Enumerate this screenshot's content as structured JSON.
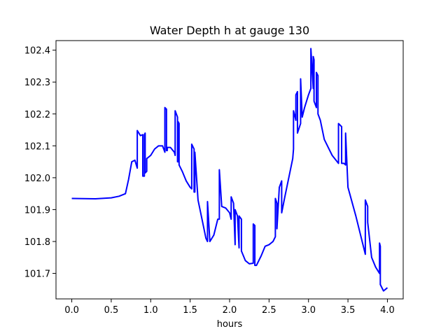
{
  "chart_data": {
    "type": "line",
    "title": "Water Depth h at gauge 130",
    "xlabel": "hours",
    "ylabel": "",
    "xlim": [
      -0.2,
      4.2
    ],
    "ylim": [
      101.62,
      102.43
    ],
    "x_ticks": [
      0.0,
      0.5,
      1.0,
      1.5,
      2.0,
      2.5,
      3.0,
      3.5,
      4.0
    ],
    "x_tick_labels": [
      "0.0",
      "0.5",
      "1.0",
      "1.5",
      "2.0",
      "2.5",
      "3.0",
      "3.5",
      "4.0"
    ],
    "y_ticks": [
      101.7,
      101.8,
      101.9,
      102.0,
      102.1,
      102.2,
      102.3,
      102.4
    ],
    "y_tick_labels": [
      "101.7",
      "101.8",
      "101.9",
      "102.0",
      "102.1",
      "102.2",
      "102.3",
      "102.4"
    ],
    "grid": false,
    "series": [
      {
        "color": "#0000ff",
        "x": [
          0.0,
          0.3,
          0.5,
          0.6,
          0.68,
          0.72,
          0.76,
          0.8,
          0.83,
          0.83,
          0.87,
          0.9,
          0.9,
          0.92,
          0.92,
          0.93,
          0.93,
          0.95,
          0.95,
          1.0,
          1.05,
          1.1,
          1.15,
          1.18,
          1.18,
          1.2,
          1.2,
          1.21,
          1.21,
          1.25,
          1.3,
          1.31,
          1.31,
          1.34,
          1.34,
          1.35,
          1.35,
          1.36,
          1.36,
          1.4,
          1.45,
          1.5,
          1.52,
          1.52,
          1.55,
          1.55,
          1.56,
          1.56,
          1.6,
          1.65,
          1.7,
          1.72,
          1.72,
          1.75,
          1.8,
          1.85,
          1.87,
          1.87,
          1.9,
          1.95,
          2.0,
          2.02,
          2.02,
          2.05,
          2.07,
          2.07,
          2.1,
          2.12,
          2.12,
          2.15,
          2.15,
          2.2,
          2.25,
          2.3,
          2.3,
          2.32,
          2.32,
          2.34,
          2.4,
          2.45,
          2.5,
          2.55,
          2.58,
          2.58,
          2.6,
          2.6,
          2.63,
          2.66,
          2.66,
          2.7,
          2.75,
          2.8,
          2.81,
          2.81,
          2.84,
          2.84,
          2.86,
          2.86,
          2.9,
          2.9,
          2.92,
          2.95,
          3.0,
          3.03,
          3.03,
          3.06,
          3.06,
          3.07,
          3.07,
          3.1,
          3.1,
          3.12,
          3.12,
          3.15,
          3.2,
          3.3,
          3.38,
          3.38,
          3.42,
          3.42,
          3.45,
          3.47,
          3.47,
          3.5,
          3.6,
          3.7,
          3.72,
          3.72,
          3.75,
          3.75,
          3.8,
          3.85,
          3.9,
          3.9,
          3.91,
          3.91,
          3.95,
          4.0
        ],
        "y": [
          101.935,
          101.934,
          101.937,
          101.942,
          101.95,
          101.995,
          102.05,
          102.055,
          102.03,
          102.148,
          102.132,
          102.135,
          102.005,
          102.005,
          102.135,
          102.14,
          102.015,
          102.02,
          102.06,
          102.07,
          102.09,
          102.1,
          102.1,
          102.08,
          102.22,
          102.215,
          102.085,
          102.085,
          102.095,
          102.095,
          102.08,
          102.07,
          102.21,
          102.19,
          102.05,
          102.05,
          102.175,
          102.17,
          102.04,
          102.02,
          101.99,
          101.97,
          101.965,
          102.105,
          102.09,
          101.955,
          101.955,
          102.08,
          101.93,
          101.87,
          101.81,
          101.8,
          101.925,
          101.8,
          101.82,
          101.87,
          101.87,
          102.025,
          101.91,
          101.905,
          101.89,
          101.87,
          101.94,
          101.92,
          101.79,
          101.9,
          101.88,
          101.78,
          101.88,
          101.87,
          101.77,
          101.74,
          101.73,
          101.732,
          101.855,
          101.85,
          101.725,
          101.725,
          101.755,
          101.785,
          101.79,
          101.8,
          101.815,
          101.935,
          101.92,
          101.84,
          101.97,
          101.99,
          101.89,
          101.94,
          102.0,
          102.06,
          102.09,
          102.21,
          102.18,
          102.26,
          102.27,
          102.14,
          102.17,
          102.31,
          102.19,
          102.22,
          102.26,
          102.28,
          102.405,
          102.28,
          102.38,
          102.37,
          102.24,
          102.22,
          102.33,
          102.32,
          102.2,
          102.18,
          102.12,
          102.07,
          102.045,
          102.17,
          102.16,
          102.045,
          102.045,
          102.04,
          102.14,
          101.97,
          101.88,
          101.78,
          101.76,
          101.93,
          101.91,
          101.86,
          101.75,
          101.72,
          101.7,
          101.795,
          101.785,
          101.665,
          101.645,
          101.655
        ]
      }
    ]
  }
}
